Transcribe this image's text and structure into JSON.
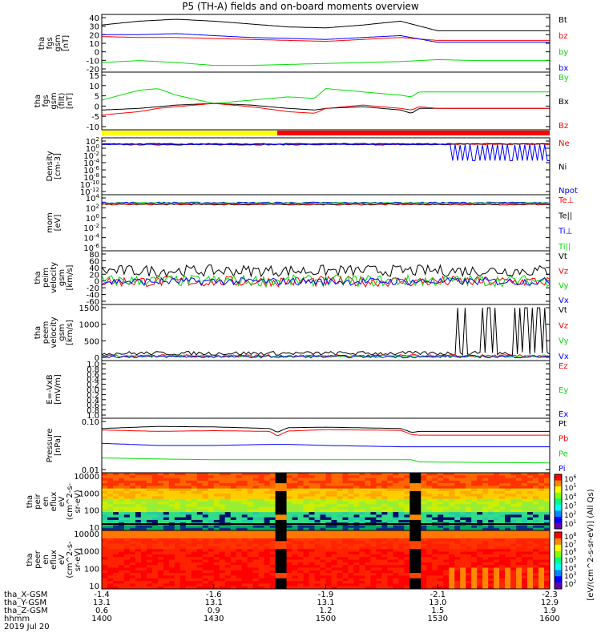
{
  "title": "P5 (TH-A) fields and on-board moments overview",
  "date_label": "2019 Jul 20",
  "ephemeris": {
    "labels": [
      "tha_X-GSM",
      "tha_Y-GSM",
      "tha_Z-GSM",
      "hhmm"
    ],
    "rows": [
      [
        "-1.4",
        "-1.6",
        "-1.9",
        "-2.1",
        "-2.3"
      ],
      [
        "13.1",
        "13.1",
        "13.1",
        "13.0",
        "12.9"
      ],
      [
        "0.6",
        "0.9",
        "1.2",
        "1.5",
        "1.9"
      ],
      [
        "1400",
        "1430",
        "1500",
        "1530",
        "1600"
      ]
    ]
  },
  "colorbar_label": "[eV/(cm^2-s-sr-eV)] (All Qs)",
  "colorbar_ticks_top": [
    "10^6",
    "10^5",
    "10^4",
    "10^3",
    "10^2",
    "10^1"
  ],
  "colorbar_ticks_bottom": [
    "10^8",
    "10^7",
    "10^6",
    "10^5",
    "10^4",
    "10^3",
    "10^2"
  ],
  "colors": {
    "black": "#000000",
    "red": "#ff0000",
    "green": "#00dd00",
    "blue": "#0000ff",
    "yellow": "#ffff00"
  },
  "status_bar": {
    "yellow_until": "14:47",
    "after_color": "red"
  },
  "chart_data": [
    {
      "type": "line",
      "ylabel": [
        "tha",
        "fgs",
        "gsm",
        "[nT]"
      ],
      "yticks": [
        "40",
        "30",
        "20",
        "10",
        "0",
        "-10",
        "-20"
      ],
      "ylim": [
        -20,
        40
      ],
      "legend": [
        {
          "name": "Bt",
          "color": "#000000"
        },
        {
          "name": "bz",
          "color": "#ff0000"
        },
        {
          "name": "by",
          "color": "#00dd00"
        },
        {
          "name": "bx",
          "color": "#0000ff"
        }
      ],
      "x_minutes": [
        0,
        10,
        20,
        30,
        40,
        50,
        60,
        70,
        80,
        90,
        100,
        110,
        120
      ],
      "series": [
        {
          "name": "Bt",
          "values": [
            29,
            33,
            35,
            33,
            30,
            27,
            26,
            29,
            33,
            23,
            23,
            23,
            23
          ]
        },
        {
          "name": "bz",
          "values": [
            17,
            16,
            16,
            15,
            14,
            13,
            12,
            14,
            16,
            13,
            13,
            13,
            13
          ]
        },
        {
          "name": "bx",
          "values": [
            19,
            19,
            20,
            18,
            16,
            15,
            14,
            16,
            18,
            11,
            11,
            11,
            11
          ]
        },
        {
          "name": "by",
          "values": [
            -10,
            -8,
            -10,
            -13,
            -13,
            -12,
            -11,
            -10,
            -9,
            -7,
            -8,
            -8,
            -8
          ]
        }
      ]
    },
    {
      "type": "line",
      "ylabel": [
        "tha",
        "fgs",
        "gsm",
        "(filt)",
        "[nT]"
      ],
      "yticks": [
        "15",
        "10",
        "5",
        "0",
        "-5",
        "-10"
      ],
      "ylim": [
        -15,
        20
      ],
      "legend": [
        {
          "name": "By",
          "color": "#00dd00"
        },
        {
          "name": "Bx",
          "color": "#000000"
        },
        {
          "name": "Bz",
          "color": "#ff0000"
        }
      ],
      "x_minutes": [
        0,
        10,
        15,
        20,
        30,
        40,
        50,
        57,
        60,
        70,
        80,
        83,
        85,
        90,
        100,
        110,
        120
      ],
      "series": [
        {
          "name": "By",
          "values": [
            3,
            9,
            10,
            6,
            1,
            3,
            5,
            4,
            10,
            8,
            6,
            5,
            8,
            8,
            8,
            8,
            8
          ]
        },
        {
          "name": "Bx",
          "values": [
            -3,
            -2,
            -1,
            0,
            1,
            0,
            -2,
            -3,
            -2,
            -1,
            -3,
            -5,
            -2,
            -2,
            -2,
            -2,
            -2
          ]
        },
        {
          "name": "Bz",
          "values": [
            -6,
            -4,
            -2,
            -1,
            1,
            -1,
            -4,
            -5,
            -2,
            0,
            -2,
            -3,
            -1,
            -2,
            -2,
            -2,
            -2
          ]
        }
      ]
    },
    {
      "type": "line",
      "scale": "log",
      "ylabel": [
        "Density",
        "[cm-3]"
      ],
      "yticks": [
        "10^2",
        "10^0",
        "10^-2",
        "10^-4",
        "10^-6",
        "10^-8",
        "10^-10",
        "10^-12"
      ],
      "ylim": [
        -12,
        3
      ],
      "legend": [
        {
          "name": "Ne",
          "color": "#ff0000"
        },
        {
          "name": "Ni",
          "color": "#000000"
        },
        {
          "name": "Npot",
          "color": "#0000ff"
        }
      ],
      "series": [
        {
          "name": "Ne",
          "log10_value": 1.3
        },
        {
          "name": "Ni",
          "log10_value": 1.4
        },
        {
          "name": "Npot",
          "log10_value": 1.2,
          "note": "square-wave dropouts to 10^-3 after 15:33"
        }
      ]
    },
    {
      "type": "line",
      "scale": "log",
      "ylabel": [
        "mom",
        "[eV]"
      ],
      "yticks": [
        "10^4",
        "10^2",
        "10^0",
        "10^-2",
        "10^-4",
        "10^-6"
      ],
      "ylim": [
        -7,
        5
      ],
      "legend": [
        {
          "name": "Te⊥",
          "color": "#ff0000"
        },
        {
          "name": "Te||",
          "color": "#000000"
        },
        {
          "name": "Ti⊥",
          "color": "#0000ff"
        },
        {
          "name": "Ti||",
          "color": "#00dd00"
        }
      ],
      "series": [
        {
          "name": "Te⊥",
          "log10_value": 2.9
        },
        {
          "name": "Te||",
          "log10_value": 3.0
        },
        {
          "name": "Ti⊥",
          "log10_value": 3.3
        },
        {
          "name": "Ti||",
          "log10_value": 3.2
        }
      ]
    },
    {
      "type": "line",
      "ylabel": [
        "tha",
        "peim",
        "velocity",
        "gsm",
        "[km/s]"
      ],
      "yticks": [
        "80",
        "60",
        "40",
        "20",
        "0",
        "-20",
        "-40",
        "-60"
      ],
      "ylim": [
        -60,
        80
      ],
      "legend": [
        {
          "name": "Vt",
          "color": "#000000"
        },
        {
          "name": "Vz",
          "color": "#ff0000"
        },
        {
          "name": "Vy",
          "color": "#00dd00"
        },
        {
          "name": "Vx",
          "color": "#0000ff"
        }
      ],
      "series": [
        {
          "name": "Vt",
          "mean": 28,
          "noise": 15
        },
        {
          "name": "Vz",
          "mean": 0,
          "noise": 14
        },
        {
          "name": "Vy",
          "mean": 2,
          "noise": 15
        },
        {
          "name": "Vx",
          "mean": 0,
          "noise": 10
        }
      ]
    },
    {
      "type": "line",
      "ylabel": [
        "tha",
        "peem",
        "velocity",
        "gsm",
        "[km/s]"
      ],
      "yticks": [
        "1500",
        "1000",
        "500",
        "0"
      ],
      "ylim": [
        -100,
        1600
      ],
      "legend": [
        {
          "name": "Vt",
          "color": "#000000"
        },
        {
          "name": "Vz",
          "color": "#ff0000"
        },
        {
          "name": "Vy",
          "color": "#00dd00"
        },
        {
          "name": "Vx",
          "color": "#0000ff"
        }
      ],
      "series": [
        {
          "name": "Vt",
          "mean": 120,
          "noise": 60,
          "spikes_to": 1500
        },
        {
          "name": "Vz",
          "mean": 40,
          "noise": 40
        },
        {
          "name": "Vy",
          "mean": 30,
          "noise": 40
        },
        {
          "name": "Vx",
          "mean": 20,
          "noise": 40
        }
      ]
    },
    {
      "type": "line",
      "ylabel": [
        "E=-VxB",
        "[mV/m]"
      ],
      "yticks": [
        "1.0",
        "0.8",
        "0.6",
        "0.4",
        "0.2",
        "0.0",
        "0.2",
        "0.4",
        "0.6",
        "0.8",
        "1.0"
      ],
      "ylim": [
        -1,
        1
      ],
      "legend": [
        {
          "name": "Ez",
          "color": "#ff0000"
        },
        {
          "name": "Ey",
          "color": "#00dd00"
        },
        {
          "name": "Ex",
          "color": "#0000ff"
        }
      ],
      "series": []
    },
    {
      "type": "line",
      "scale": "log",
      "ylabel": [
        "Pressure",
        "[nPa]"
      ],
      "yticks": [
        "0.10",
        "0.01"
      ],
      "ylim": [
        0.01,
        1.0
      ],
      "legend": [
        {
          "name": "Pt",
          "color": "#000000"
        },
        {
          "name": "Pb",
          "color": "#ff0000"
        },
        {
          "name": "Pe",
          "color": "#00dd00"
        },
        {
          "name": "Pi",
          "color": "#0000ff"
        }
      ],
      "x_minutes": [
        0,
        15,
        30,
        45,
        47,
        50,
        60,
        80,
        83,
        85,
        100,
        120
      ],
      "series": [
        {
          "name": "Pt",
          "values": [
            0.42,
            0.5,
            0.48,
            0.42,
            0.3,
            0.45,
            0.47,
            0.42,
            0.3,
            0.33,
            0.33,
            0.33
          ]
        },
        {
          "name": "Pb",
          "values": [
            0.37,
            0.33,
            0.35,
            0.33,
            0.22,
            0.34,
            0.38,
            0.36,
            0.25,
            0.24,
            0.24,
            0.24
          ]
        },
        {
          "name": "Pi",
          "values": [
            0.12,
            0.1,
            0.1,
            0.11,
            0.11,
            0.11,
            0.1,
            0.09,
            0.09,
            0.09,
            0.09,
            0.09
          ]
        },
        {
          "name": "Pe",
          "values": [
            0.035,
            0.032,
            0.03,
            0.03,
            0.03,
            0.03,
            0.03,
            0.03,
            0.03,
            0.025,
            0.024,
            0.023
          ]
        }
      ]
    },
    {
      "type": "heatmap",
      "ylabel": [
        "tha",
        "peir",
        "en",
        "eflux",
        "eV",
        "(cm^2-s-",
        "sr-eV)"
      ],
      "yticks": [
        "10000",
        "1000",
        "100",
        "10"
      ],
      "ylim": [
        5,
        30000
      ],
      "gaps_minutes": [
        [
          46,
          48
        ],
        [
          82,
          85
        ]
      ]
    },
    {
      "type": "heatmap",
      "ylabel": [
        "tha",
        "peer",
        "en",
        "eflux",
        "eV",
        "(cm^2-s-",
        "sr-eV)"
      ],
      "yticks": [
        "10000",
        "1000",
        "100",
        "10"
      ],
      "ylim": [
        5,
        30000
      ],
      "gaps_minutes": [
        [
          46,
          48
        ],
        [
          82,
          85
        ]
      ]
    }
  ]
}
